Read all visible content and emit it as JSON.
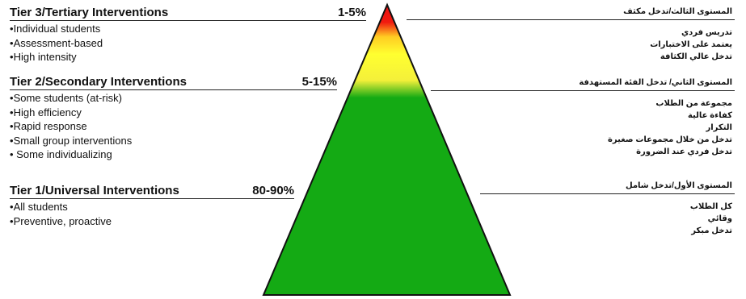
{
  "tiers": [
    {
      "title": "Tier 3/Tertiary Interventions",
      "percent": "1-5%",
      "bullets": [
        "Individual students",
        "Assessment-based",
        "High intensity"
      ],
      "arabic_title": "المستوى الثالث/تدخل مكثف",
      "arabic_bullets": [
        "تدريس فردي",
        "يعتمد على الاختبارات",
        "تدخل عالي الكثافة"
      ]
    },
    {
      "title": "Tier 2/Secondary Interventions",
      "percent": "5-15%",
      "bullets": [
        "Some students (at-risk)",
        "High efficiency",
        "Rapid response",
        "Small group interventions",
        " Some individualizing"
      ],
      "arabic_title": "المستوى الثاني/ تدخل الفئة المستهدفة",
      "arabic_bullets": [
        "مجموعة من الطلاب",
        "كفاءة عالية",
        "التكرار",
        "تدخل من خلال مجموعات صغيرة",
        "تدخل فردي عند الضرورة"
      ]
    },
    {
      "title": "Tier 1/Universal Interventions",
      "percent": "80-90%",
      "bullets": [
        "All students",
        "Preventive, proactive"
      ],
      "arabic_title": "المستوى الأول/تدخل شامل",
      "arabic_bullets": [
        "كل الطلاب",
        "وقائي",
        "تدخل مبكر"
      ]
    }
  ],
  "colors": {
    "tier3_top": "#ee1111",
    "tier2_band": "#ffff22",
    "tier1_base": "#14aa14",
    "outline": "#111111"
  }
}
